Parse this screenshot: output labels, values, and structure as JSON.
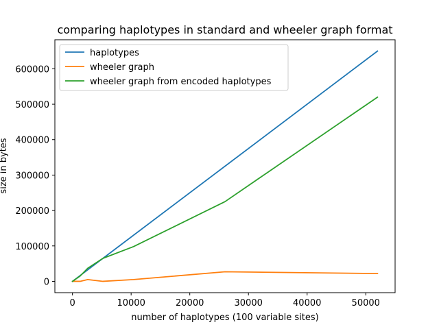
{
  "chart_data": {
    "type": "line",
    "title": "comparing haplotypes in standard and wheeler graph format",
    "xlabel": "number of haplotypes (100 variable sites)",
    "ylabel": "size in bytes",
    "xlim": [
      -3000,
      55000
    ],
    "ylim": [
      -32000,
      682000
    ],
    "x_ticks": [
      0,
      10000,
      20000,
      30000,
      40000,
      50000
    ],
    "x_tick_labels": [
      "0",
      "10000",
      "20000",
      "30000",
      "40000",
      "50000"
    ],
    "y_ticks": [
      0,
      100000,
      200000,
      300000,
      400000,
      500000,
      600000
    ],
    "y_tick_labels": [
      "0",
      "100000",
      "200000",
      "300000",
      "400000",
      "500000",
      "600000"
    ],
    "grid": false,
    "legend_position": "top-left",
    "series": [
      {
        "name": "haplotypes",
        "color": "#1f77b4",
        "x": [
          0,
          1300,
          2600,
          5200,
          10400,
          26000,
          52000
        ],
        "y": [
          0,
          16250,
          32500,
          65000,
          130000,
          325000,
          650000
        ]
      },
      {
        "name": "wheeler graph",
        "color": "#ff7f0e",
        "x": [
          0,
          1300,
          2600,
          5200,
          10400,
          26000,
          52000
        ],
        "y": [
          0,
          0,
          5000,
          0,
          5000,
          27000,
          22000
        ]
      },
      {
        "name": "wheeler graph from encoded haplotypes",
        "color": "#2ca02c",
        "x": [
          0,
          1300,
          2600,
          5200,
          10400,
          26000,
          52000
        ],
        "y": [
          0,
          15000,
          37000,
          65000,
          98000,
          225000,
          520000
        ]
      }
    ]
  }
}
